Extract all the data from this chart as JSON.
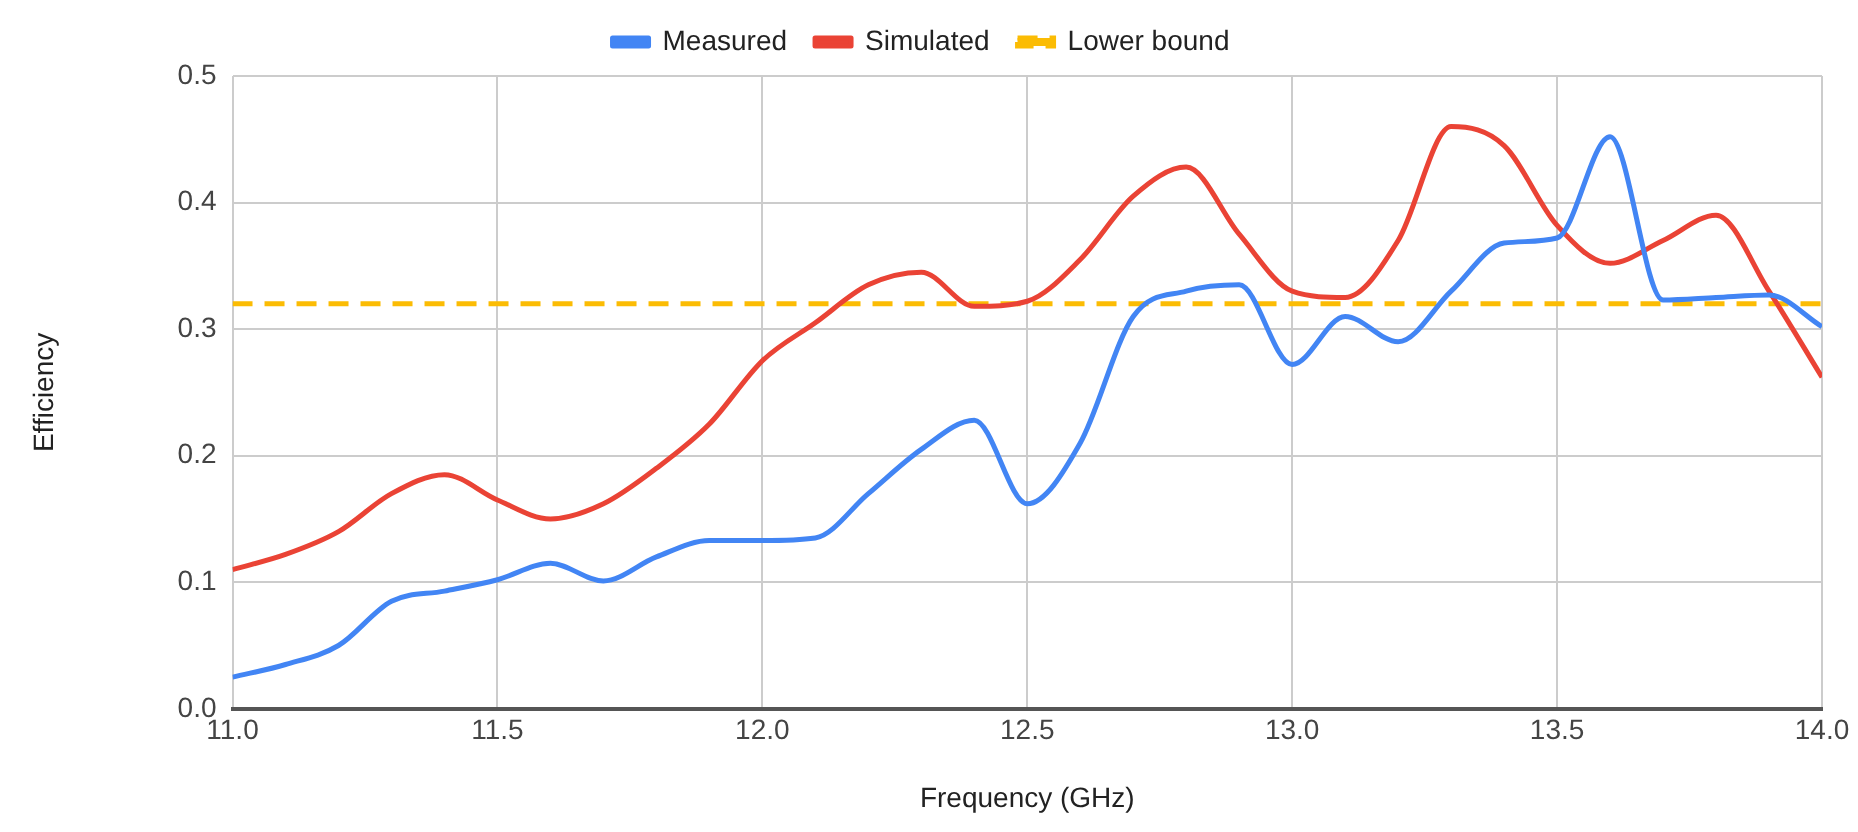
{
  "chart_data": {
    "type": "line",
    "xlabel": "Frequency (GHz)",
    "ylabel": "Efficiency",
    "x": [
      11.0,
      11.1,
      11.2,
      11.3,
      11.4,
      11.5,
      11.6,
      11.7,
      11.8,
      11.9,
      12.0,
      12.1,
      12.2,
      12.3,
      12.4,
      12.5,
      12.6,
      12.7,
      12.8,
      12.9,
      13.0,
      13.1,
      13.2,
      13.3,
      13.4,
      13.5,
      13.6,
      13.7,
      13.8,
      13.9,
      14.0
    ],
    "series": [
      {
        "name": "Measured",
        "color": "#4285f4",
        "values": [
          0.025,
          0.035,
          0.05,
          0.085,
          0.093,
          0.102,
          0.115,
          0.101,
          0.12,
          0.133,
          0.133,
          0.135,
          0.17,
          0.205,
          0.228,
          0.162,
          0.21,
          0.31,
          0.33,
          0.335,
          0.272,
          0.31,
          0.29,
          0.33,
          0.368,
          0.372,
          0.452,
          0.323,
          0.325,
          0.327,
          0.302
        ]
      },
      {
        "name": "Simulated",
        "color": "#ea4335",
        "values": [
          0.11,
          0.122,
          0.14,
          0.17,
          0.185,
          0.165,
          0.15,
          0.162,
          0.19,
          0.225,
          0.275,
          0.305,
          0.335,
          0.345,
          0.318,
          0.322,
          0.355,
          0.405,
          0.428,
          0.375,
          0.33,
          0.325,
          0.37,
          0.46,
          0.445,
          0.382,
          0.352,
          0.37,
          0.39,
          0.33,
          0.262
        ]
      }
    ],
    "ref_lines": [
      {
        "axis": "y",
        "value": 0.32,
        "label": "Lower bound",
        "color": "#fbbc04",
        "line_style": "dashed"
      }
    ],
    "xlim": [
      11,
      14
    ],
    "xticks": [
      {
        "value": 11,
        "label": "11.0"
      },
      11.5,
      {
        "value": 12,
        "label": "12.0"
      },
      12.5,
      {
        "value": 13,
        "label": "13.0"
      },
      13.5,
      {
        "value": 14,
        "label": "14.0"
      }
    ],
    "ylim": [
      0,
      0.5
    ],
    "yticks": [
      {
        "value": 0,
        "label": "0.0"
      },
      0.1,
      0.2,
      0.3,
      0.4,
      0.5
    ],
    "grid": true,
    "legend": "top",
    "marker": "none",
    "line_style": "solid"
  }
}
